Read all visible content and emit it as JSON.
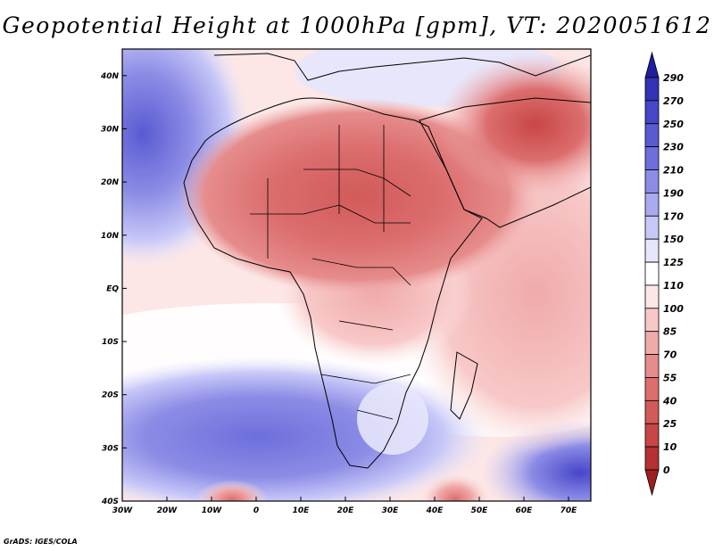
{
  "title": "Geopotential Height at 1000hPa [gpm], VT: 2020051612",
  "credit": "GrADS: IGES/COLA",
  "map": {
    "region": "Africa and Arabian Peninsula",
    "lon_range": [
      -30,
      75
    ],
    "lat_range": [
      -40,
      45
    ],
    "lon_ticks": [
      "30W",
      "20W",
      "10W",
      "0",
      "10E",
      "20E",
      "30E",
      "40E",
      "50E",
      "60E",
      "70E"
    ],
    "lat_ticks": [
      "40N",
      "30N",
      "20N",
      "10N",
      "EQ",
      "10S",
      "20S",
      "30S",
      "40S"
    ]
  },
  "colorbar": {
    "labels": [
      "290",
      "270",
      "250",
      "230",
      "210",
      "190",
      "170",
      "150",
      "125",
      "110",
      "100",
      "85",
      "70",
      "55",
      "40",
      "25",
      "10",
      "0"
    ],
    "colors_top_to_bottom": [
      "#1e1ea0",
      "#3232b4",
      "#4646c8",
      "#5a5ad2",
      "#6e6edc",
      "#8c8ce6",
      "#aaaaf0",
      "#c8c8f8",
      "#e6e6fc",
      "#ffffff",
      "#fce6e6",
      "#f8c8c8",
      "#f0aaaa",
      "#e68c8c",
      "#dc6e6e",
      "#d25a5a",
      "#c84646",
      "#b43232",
      "#a01e1e"
    ]
  }
}
